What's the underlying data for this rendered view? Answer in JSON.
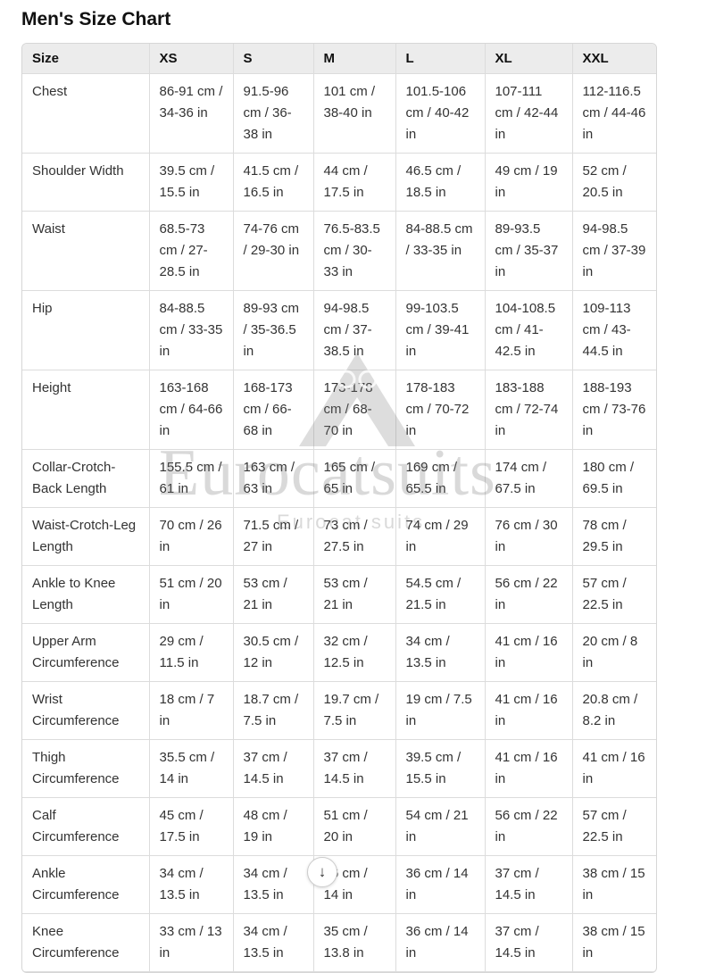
{
  "title": "Men's Size Chart",
  "table": {
    "headers": [
      "Size",
      "XS",
      "S",
      "M",
      "L",
      "XL",
      "XXL"
    ],
    "rows": [
      [
        "Chest",
        "86-91 cm / 34-36 in",
        "91.5-96 cm / 36-38 in",
        "101 cm / 38-40 in",
        "101.5-106 cm / 40-42 in",
        "107-111 cm / 42-44 in",
        "112-116.5 cm / 44-46 in"
      ],
      [
        "Shoulder Width",
        "39.5 cm / 15.5 in",
        "41.5 cm / 16.5 in",
        "44 cm / 17.5 in",
        "46.5 cm / 18.5 in",
        "49 cm / 19 in",
        "52 cm / 20.5 in"
      ],
      [
        "Waist",
        "68.5-73 cm / 27-28.5 in",
        "74-76 cm / 29-30 in",
        "76.5-83.5 cm / 30-33 in",
        "84-88.5 cm / 33-35 in",
        "89-93.5 cm / 35-37 in",
        "94-98.5 cm / 37-39 in"
      ],
      [
        "Hip",
        "84-88.5 cm / 33-35 in",
        "89-93 cm / 35-36.5 in",
        "94-98.5 cm / 37-38.5 in",
        "99-103.5 cm / 39-41 in",
        "104-108.5 cm / 41-42.5 in",
        "109-113 cm / 43-44.5 in"
      ],
      [
        "Height",
        "163-168 cm / 64-66 in",
        "168-173 cm / 66-68 in",
        "173-178 cm / 68-70 in",
        "178-183 cm / 70-72 in",
        "183-188 cm / 72-74 in",
        "188-193 cm / 73-76 in"
      ],
      [
        "Collar-Crotch-Back Length",
        "155.5 cm / 61 in",
        "163 cm / 63 in",
        "165 cm / 65 in",
        "169 cm / 65.5 in",
        "174 cm / 67.5 in",
        "180 cm / 69.5 in"
      ],
      [
        "Waist-Crotch-Leg Length",
        "70 cm / 26 in",
        "71.5 cm / 27 in",
        "73 cm / 27.5 in",
        "74 cm / 29 in",
        "76 cm / 30 in",
        "78 cm / 29.5 in"
      ],
      [
        "Ankle to Knee Length",
        "51 cm / 20 in",
        "53 cm / 21 in",
        "53 cm / 21 in",
        "54.5 cm / 21.5 in",
        "56 cm / 22 in",
        "57 cm / 22.5 in"
      ],
      [
        "Upper Arm Circumference",
        "29 cm / 11.5 in",
        "30.5 cm / 12 in",
        "32 cm / 12.5 in",
        "34 cm / 13.5 in",
        "41 cm / 16 in",
        "20 cm / 8 in"
      ],
      [
        "Wrist Circumference",
        "18 cm / 7 in",
        "18.7 cm / 7.5 in",
        "19.7 cm / 7.5 in",
        "19 cm / 7.5 in",
        "41 cm / 16 in",
        "20.8 cm / 8.2 in"
      ],
      [
        "Thigh Circumference",
        "35.5 cm / 14 in",
        "37 cm / 14.5 in",
        "37 cm / 14.5 in",
        "39.5 cm / 15.5 in",
        "41 cm / 16 in",
        "41 cm / 16 in"
      ],
      [
        "Calf Circumference",
        "45 cm / 17.5 in",
        "48 cm / 19 in",
        "51 cm / 20 in",
        "54 cm / 21 in",
        "56 cm / 22 in",
        "57 cm / 22.5 in"
      ],
      [
        "Ankle Circumference",
        "34 cm / 13.5 in",
        "34 cm / 13.5 in",
        "36 cm / 14 in",
        "36 cm / 14 in",
        "37 cm / 14.5 in",
        "38 cm / 15 in"
      ],
      [
        "Knee Circumference",
        "33 cm / 13 in",
        "34 cm / 13.5 in",
        "35 cm / 13.8 in",
        "36 cm / 14 in",
        "37 cm / 14.5 in",
        "38 cm / 15 in"
      ]
    ]
  },
  "watermark": {
    "main": "Eurocatsuits",
    "sub": "Eurocat suits"
  },
  "scroll_button": {
    "icon": "arrow-down-icon",
    "glyph": "↓"
  }
}
